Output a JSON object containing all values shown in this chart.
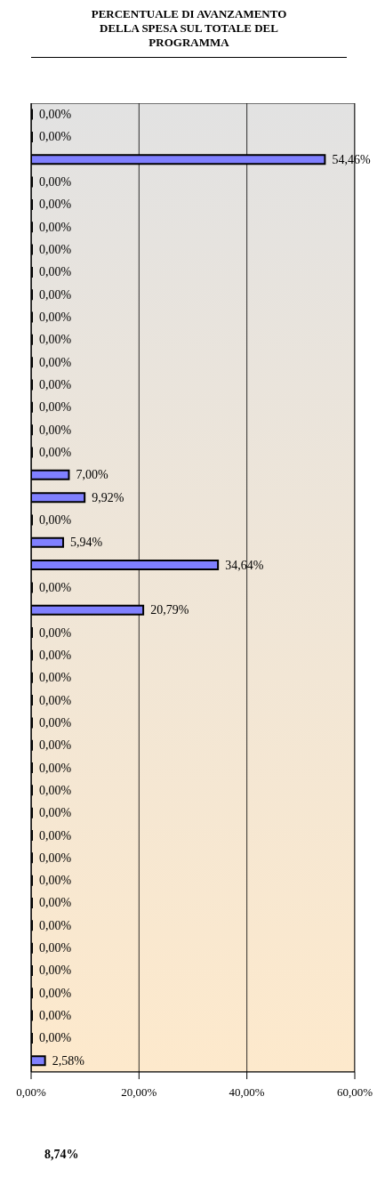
{
  "chart_data": {
    "type": "bar",
    "orientation": "horizontal",
    "title": "PERCENTUALE DI AVANZAMENTO DELLA SPESA SUL TOTALE DEL PROGRAMMA",
    "categories": [
      null,
      null,
      null,
      null,
      null,
      null,
      null,
      null,
      null,
      null,
      null,
      null,
      null,
      null,
      null,
      null,
      null,
      null,
      null,
      null,
      null,
      null,
      null,
      null,
      null,
      null,
      null,
      null,
      null,
      null,
      null,
      null,
      null,
      null,
      null,
      null,
      null,
      null,
      null,
      null,
      null,
      null,
      null
    ],
    "values": [
      0,
      0,
      54.46,
      0,
      0,
      0,
      0,
      0,
      0,
      0,
      0,
      0,
      0,
      0,
      0,
      0,
      7.0,
      9.92,
      0,
      5.94,
      34.64,
      0,
      20.79,
      0,
      0,
      0,
      0,
      0,
      0,
      0,
      0,
      0,
      0,
      0,
      0,
      0,
      0,
      0,
      0,
      0,
      0,
      0,
      2.58
    ],
    "value_labels": [
      "0,00%",
      "0,00%",
      "54,46%",
      "0,00%",
      "0,00%",
      "0,00%",
      "0,00%",
      "0,00%",
      "0,00%",
      "0,00%",
      "0,00%",
      "0,00%",
      "0,00%",
      "0,00%",
      "0,00%",
      "0,00%",
      "7,00%",
      "9,92%",
      "0,00%",
      "5,94%",
      "34,64%",
      "0,00%",
      "20,79%",
      "0,00%",
      "0,00%",
      "0,00%",
      "0,00%",
      "0,00%",
      "0,00%",
      "0,00%",
      "0,00%",
      "0,00%",
      "0,00%",
      "0,00%",
      "0,00%",
      "0,00%",
      "0,00%",
      "0,00%",
      "0,00%",
      "0,00%",
      "0,00%",
      "0,00%",
      "2,58%"
    ],
    "color": "#8080ff",
    "xlim": [
      0,
      60
    ],
    "xticks": [
      {
        "value": 0,
        "label": "0,00%"
      },
      {
        "value": 20,
        "label": "20,00%"
      },
      {
        "value": 40,
        "label": "40,00%"
      },
      {
        "value": 60,
        "label": "60,00%"
      }
    ],
    "grid": "x",
    "tick_labels": "x",
    "annotations": [
      "8,74%"
    ]
  }
}
